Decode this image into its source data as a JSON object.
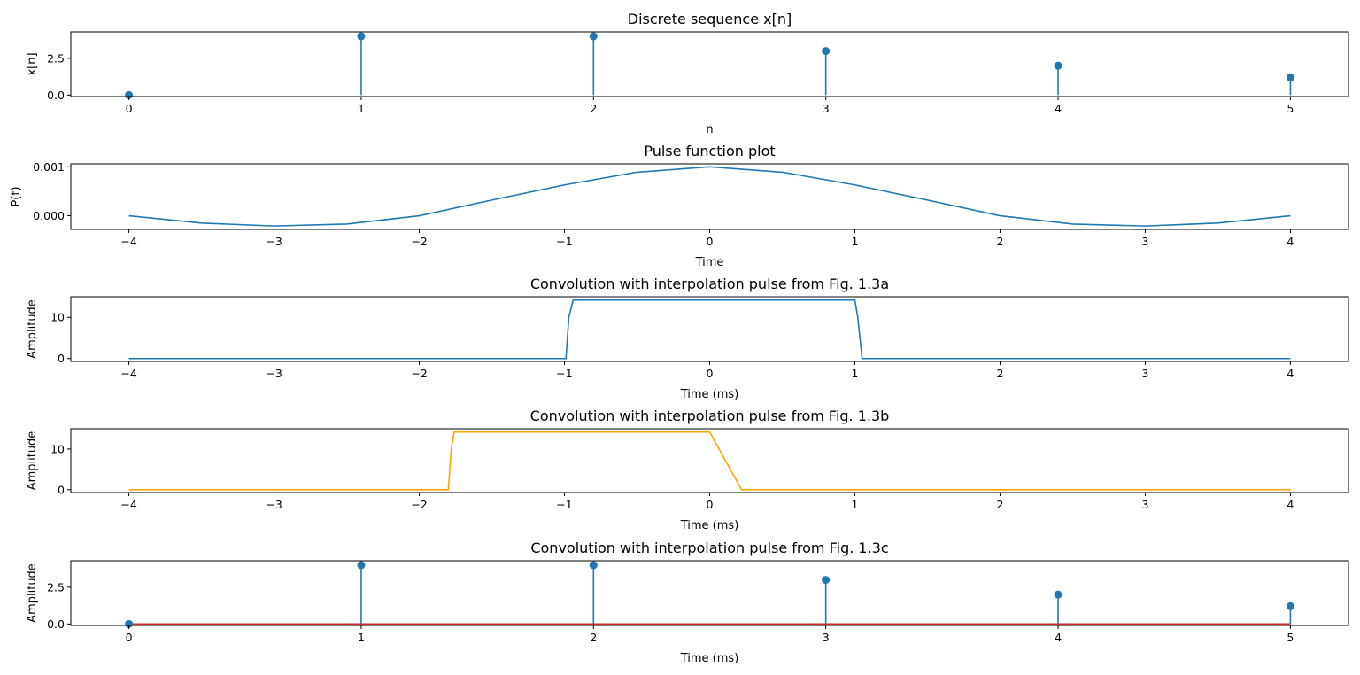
{
  "colors": {
    "blue": "#1f77b4",
    "orange": "#ffa500",
    "red": "#d62728"
  },
  "chart_data": [
    {
      "type": "stem",
      "title": "Discrete sequence x[n]",
      "xlabel": "n",
      "ylabel": "x[n]",
      "xlim": [
        -0.25,
        5.25
      ],
      "ylim": [
        -0.1,
        4.3
      ],
      "xticks": [
        0,
        1,
        2,
        3,
        4,
        5
      ],
      "xtick_labels": [
        "0",
        "1",
        "2",
        "3",
        "4",
        "5"
      ],
      "yticks": [
        0.0,
        2.5
      ],
      "ytick_labels": [
        "0.0",
        "2.5"
      ],
      "series": [
        {
          "kind": "stem",
          "color": "#1f77b4",
          "x": [
            0,
            1,
            2,
            3,
            4,
            5
          ],
          "y": [
            0,
            4.0,
            4.0,
            3.0,
            2.0,
            1.2
          ]
        }
      ]
    },
    {
      "type": "line",
      "title": "Pulse function plot",
      "xlabel": "Time",
      "ylabel": "P(t)",
      "xlim": [
        -4.4,
        4.4
      ],
      "ylim": [
        -0.00028,
        0.00106
      ],
      "xticks": [
        -4,
        -3,
        -2,
        -1,
        0,
        1,
        2,
        3,
        4
      ],
      "xtick_labels": [
        "−4",
        "−3",
        "−2",
        "−1",
        "0",
        "1",
        "2",
        "3",
        "4"
      ],
      "yticks": [
        0.0,
        0.001
      ],
      "ytick_labels": [
        "0.000",
        "0.001"
      ],
      "series": [
        {
          "kind": "line",
          "color": "#1f77b4",
          "x": [
            -4,
            -3.5,
            -3,
            -2.5,
            -2,
            -1.5,
            -1,
            -0.5,
            0,
            0.5,
            1,
            1.5,
            2,
            2.5,
            3,
            3.5,
            4
          ],
          "y": [
            0.0,
            -0.00015,
            -0.00021,
            -0.00017,
            0.0,
            0.00032,
            0.00063,
            0.00089,
            0.001,
            0.00089,
            0.00063,
            0.00032,
            0.0,
            -0.00017,
            -0.00021,
            -0.00015,
            0.0
          ]
        }
      ]
    },
    {
      "type": "line",
      "title": "Convolution with interpolation pulse from Fig. 1.3a",
      "xlabel": "Time (ms)",
      "ylabel": "Amplitude",
      "xlim": [
        -4.4,
        4.4
      ],
      "ylim": [
        -0.7,
        15.0
      ],
      "xticks": [
        -4,
        -3,
        -2,
        -1,
        0,
        1,
        2,
        3,
        4
      ],
      "xtick_labels": [
        "−4",
        "−3",
        "−2",
        "−1",
        "0",
        "1",
        "2",
        "3",
        "4"
      ],
      "yticks": [
        0,
        10
      ],
      "ytick_labels": [
        "0",
        "10"
      ],
      "series": [
        {
          "kind": "line",
          "color": "#1f77b4",
          "x": [
            -4,
            -0.99,
            -0.97,
            -0.94,
            1.0,
            1.02,
            1.05,
            4
          ],
          "y": [
            0,
            0,
            10,
            14.2,
            14.2,
            10,
            0,
            0
          ]
        }
      ]
    },
    {
      "type": "line",
      "title": "Convolution with interpolation pulse from Fig. 1.3b",
      "xlabel": "Time (ms)",
      "ylabel": "Amplitude",
      "xlim": [
        -4.4,
        4.4
      ],
      "ylim": [
        -0.7,
        15.0
      ],
      "xticks": [
        -4,
        -3,
        -2,
        -1,
        0,
        1,
        2,
        3,
        4
      ],
      "xtick_labels": [
        "−4",
        "−3",
        "−2",
        "−1",
        "0",
        "1",
        "2",
        "3",
        "4"
      ],
      "yticks": [
        0,
        10
      ],
      "ytick_labels": [
        "0",
        "10"
      ],
      "series": [
        {
          "kind": "line",
          "color": "#ffa500",
          "x": [
            -4,
            -1.8,
            -1.78,
            -1.76,
            0.0,
            0.22,
            4
          ],
          "y": [
            0,
            0,
            10,
            14.2,
            14.2,
            0,
            0
          ]
        }
      ]
    },
    {
      "type": "line",
      "title": "Convolution with interpolation pulse from Fig. 1.3c",
      "xlabel": "Time (ms)",
      "ylabel": "Amplitude",
      "xlim": [
        -0.25,
        5.25
      ],
      "ylim": [
        -0.1,
        4.3
      ],
      "xticks": [
        0,
        1,
        2,
        3,
        4,
        5
      ],
      "xtick_labels": [
        "0",
        "1",
        "2",
        "3",
        "4",
        "5"
      ],
      "yticks": [
        0.0,
        2.5
      ],
      "ytick_labels": [
        "0.0",
        "2.5"
      ],
      "series": [
        {
          "kind": "line",
          "color": "#d62728",
          "x": [
            0,
            5
          ],
          "y": [
            0,
            0
          ]
        },
        {
          "kind": "stem",
          "color": "#1f77b4",
          "x": [
            0,
            1,
            2,
            3,
            4,
            5
          ],
          "y": [
            0,
            4.0,
            4.0,
            3.0,
            2.0,
            1.2
          ]
        }
      ]
    }
  ]
}
